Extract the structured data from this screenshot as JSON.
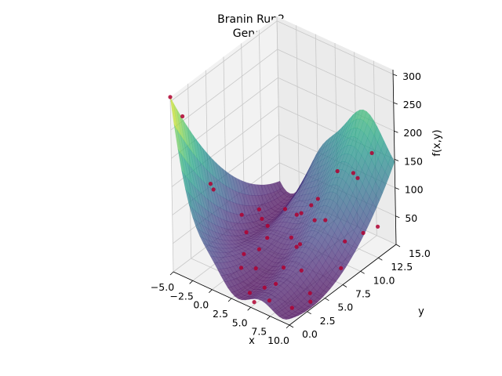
{
  "chart_data": {
    "type": "surface3d",
    "title": "Branin Run2",
    "subtitle": "Gen: 0",
    "xlabel": "x",
    "ylabel": "y",
    "zlabel": "f(x,y)",
    "xlim": [
      -5,
      10
    ],
    "ylim": [
      0,
      15
    ],
    "zlim": [
      0,
      308
    ],
    "x_ticks": [
      -5.0,
      -2.5,
      0.0,
      2.5,
      5.0,
      7.5,
      10.0
    ],
    "x_tick_labels": [
      "−5.0",
      "−2.5",
      "0.0",
      "2.5",
      "5.0",
      "7.5",
      "10.0"
    ],
    "y_ticks": [
      0.0,
      2.5,
      5.0,
      7.5,
      10.0,
      12.5,
      15.0
    ],
    "y_tick_labels": [
      "0.0",
      "2.5",
      "5.0",
      "7.5",
      "10.0",
      "12.5",
      "15.0"
    ],
    "z_ticks": [
      50,
      100,
      150,
      200,
      250,
      300
    ],
    "z_tick_labels": [
      "50",
      "100",
      "150",
      "200",
      "250",
      "300"
    ],
    "grid": true,
    "colormap": "viridis",
    "surface_function": "branin",
    "surface_alpha": 0.7,
    "point_color": "#b00030",
    "population": [
      [
        -5.0,
        0.0,
        308.1
      ],
      [
        -4.3,
        0.9,
        270.0
      ],
      [
        -3.8,
        4.5,
        110.0
      ],
      [
        -3.0,
        7.5,
        42.0
      ],
      [
        -2.2,
        2.4,
        150.0
      ],
      [
        -4.0,
        11.0,
        12.0
      ],
      [
        -3.2,
        10.5,
        5.0
      ],
      [
        -1.5,
        6.5,
        30.0
      ],
      [
        0.0,
        4.5,
        20.0
      ],
      [
        -2.0,
        10.0,
        5.0
      ],
      [
        -1.0,
        13.0,
        2.5
      ],
      [
        -0.5,
        14.5,
        8.0
      ],
      [
        -0.2,
        8.0,
        14.0
      ],
      [
        0.6,
        6.0,
        18.0
      ],
      [
        1.5,
        2.5,
        24.0
      ],
      [
        2.0,
        4.0,
        12.0
      ],
      [
        1.0,
        11.5,
        32.0
      ],
      [
        1.8,
        13.0,
        48.0
      ],
      [
        3.0,
        14.5,
        90.0
      ],
      [
        3.2,
        11.0,
        38.0
      ],
      [
        3.6,
        8.0,
        22.0
      ],
      [
        4.2,
        5.5,
        13.0
      ],
      [
        3.5,
        1.5,
        2.0
      ],
      [
        5.0,
        0.5,
        4.5
      ],
      [
        4.5,
        2.5,
        8.0
      ],
      [
        5.5,
        3.0,
        16.0
      ],
      [
        6.5,
        1.0,
        12.0
      ],
      [
        5.0,
        7.0,
        45.0
      ],
      [
        6.0,
        9.5,
        70.0
      ],
      [
        7.0,
        5.0,
        30.0
      ],
      [
        7.5,
        12.5,
        125.0
      ],
      [
        8.0,
        14.0,
        158.0
      ],
      [
        8.5,
        9.5,
        48.0
      ],
      [
        6.0,
        13.5,
        115.0
      ],
      [
        9.0,
        4.0,
        12.0
      ],
      [
        9.5,
        3.5,
        5.0
      ],
      [
        9.5,
        11.0,
        55.0
      ],
      [
        8.5,
        2.0,
        2.0
      ],
      [
        10.0,
        12.5,
        55.0
      ],
      [
        9.8,
        7.5,
        28.0
      ],
      [
        2.0,
        9.0,
        19.0
      ],
      [
        -2.5,
        13.0,
        3.0
      ]
    ]
  }
}
